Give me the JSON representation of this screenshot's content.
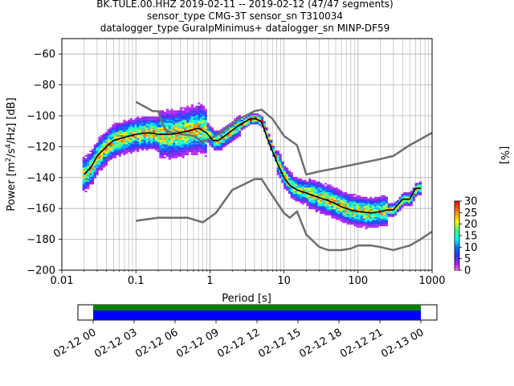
{
  "figure": {
    "title_lines": [
      "BK.TULE.00.HHZ   2019-02-11 -- 2019-02-12  (47/47 segments)",
      "sensor_type CMG-3T sensor_sn T310034",
      "datalogger_type GuralpMinimus+ datalogger_sn MINP-DF59"
    ]
  },
  "chart_data": [
    {
      "type": "heatmap",
      "title": "BK.TULE.00.HHZ   2019-02-11 -- 2019-02-12  (47/47 segments)",
      "xlabel": "Period [s]",
      "ylabel": "Power [m²/s⁴/Hz] [dB]",
      "x_scale": "log",
      "xlim": [
        0.01,
        1000
      ],
      "ylim": [
        -200,
        -50
      ],
      "x_ticks": [
        0.01,
        0.1,
        1,
        10,
        100,
        1000
      ],
      "x_tick_labels": [
        "0.01",
        "0.1",
        "1",
        "10",
        "100",
        "1000"
      ],
      "y_ticks": [
        -200,
        -180,
        -160,
        -140,
        -120,
        -100,
        -80,
        -60
      ],
      "y_tick_labels": [
        "−200",
        "−180",
        "−160",
        "−140",
        "−120",
        "−100",
        "−80",
        "−60"
      ],
      "grid": true,
      "colorbar": {
        "label": "[%]",
        "min": 0,
        "max": 30,
        "ticks": [
          0,
          5,
          10,
          15,
          20,
          25,
          30
        ],
        "tick_labels": [
          "0",
          "5",
          "10",
          "15",
          "20",
          "25",
          "30"
        ]
      },
      "mean_curve": {
        "x": [
          0.02,
          0.025,
          0.03,
          0.04,
          0.05,
          0.07,
          0.1,
          0.15,
          0.2,
          0.3,
          0.5,
          0.7,
          0.9,
          1.1,
          1.3,
          1.7,
          2.5,
          3.5,
          4.2,
          5,
          6,
          8,
          10,
          12,
          15,
          20,
          30,
          40,
          50,
          60,
          80,
          100,
          150,
          200,
          250,
          300,
          400,
          500,
          600,
          700
        ],
        "y": [
          -138,
          -133,
          -126,
          -120,
          -116,
          -114,
          -112,
          -111,
          -112,
          -112,
          -110,
          -108,
          -111,
          -116,
          -116,
          -112,
          -106,
          -102,
          -102,
          -104,
          -115,
          -130,
          -140,
          -145,
          -148,
          -150,
          -153,
          -155,
          -157,
          -159,
          -161,
          -162,
          -163,
          -162,
          -161,
          -161,
          -154,
          -154,
          -147,
          -147
        ]
      },
      "reference_curves": [
        {
          "x": [
            0.1,
            0.17,
            0.2,
            0.21,
            0.22,
            0.25,
            0.3,
            0.6,
            0.8,
            1.2,
            2.5,
            4,
            5,
            7,
            10,
            15,
            20,
            30,
            50,
            100,
            200,
            300,
            500,
            1000
          ],
          "y": [
            -91,
            -97,
            -97,
            -100,
            -103,
            -109,
            -111,
            -113,
            -117,
            -113,
            -102,
            -97,
            -96,
            -102,
            -113,
            -119,
            -138,
            -136,
            -134,
            -131,
            -128,
            -126,
            -119,
            -111
          ]
        },
        {
          "x": [
            0.1,
            0.2,
            0.5,
            0.8,
            1.2,
            2,
            3,
            4,
            5,
            6,
            8,
            10,
            12,
            15,
            20,
            30,
            40,
            60,
            80,
            100,
            150,
            200,
            300,
            500,
            700,
            1000
          ],
          "y": [
            -168,
            -166,
            -166,
            -169,
            -163,
            -148,
            -144,
            -141,
            -141,
            -147,
            -156,
            -163,
            -166,
            -162,
            -177,
            -185,
            -187,
            -187,
            -186,
            -184,
            -184,
            -185,
            -187,
            -184,
            -180,
            -175
          ]
        }
      ]
    },
    {
      "type": "bar",
      "x_ticks": [
        "02-12 00",
        "02-12 03",
        "02-12 06",
        "02-12 09",
        "02-12 12",
        "02-12 15",
        "02-12 18",
        "02-12 21",
        "02-13 00"
      ],
      "coverage_fraction": 1.0,
      "colors": {
        "coverage": "#0000ff",
        "gaps_bar": "#008000"
      }
    }
  ],
  "colors": {
    "reference_curve": "#6e6e6e",
    "mean_curve": "#000000",
    "grid": "#b0b0b0"
  }
}
